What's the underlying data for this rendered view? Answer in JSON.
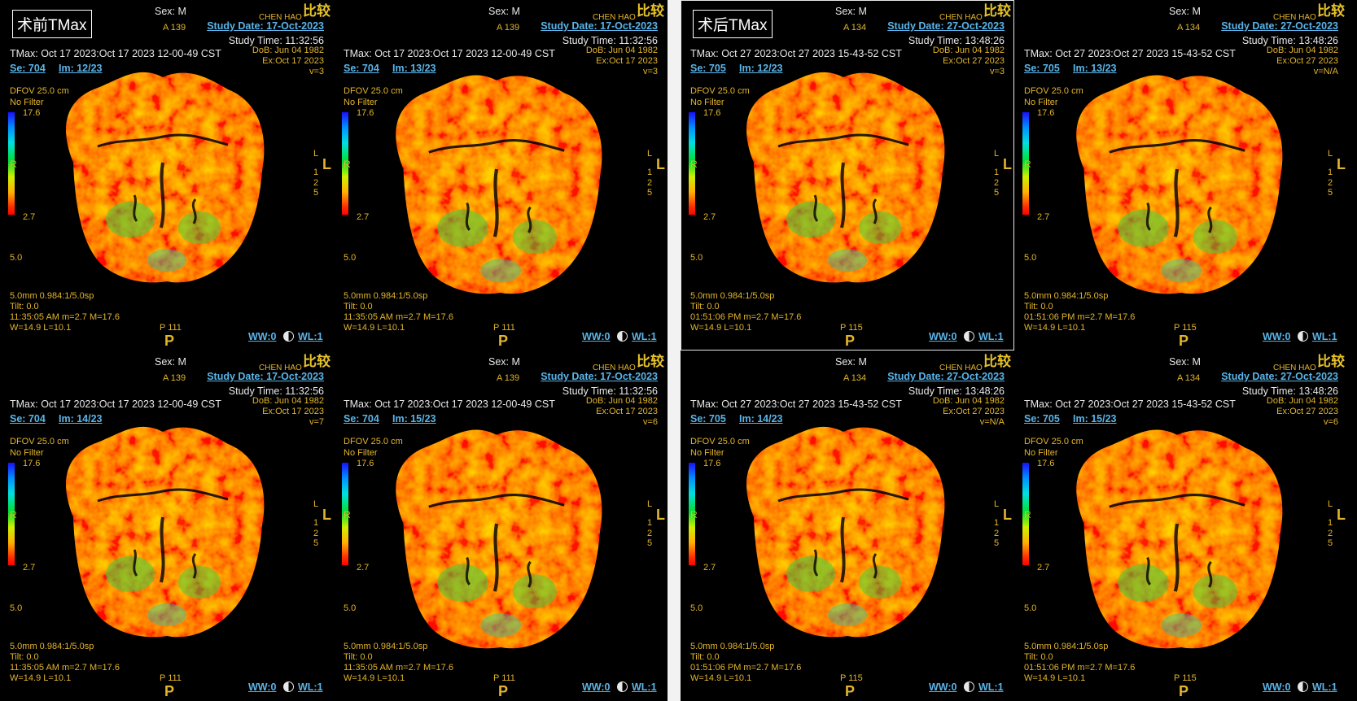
{
  "left": {
    "tag": "术前TMax",
    "panels": [
      {
        "sex": "Sex: M",
        "name": "CHEN HAO",
        "compare": "比较",
        "a": "A 139",
        "study_date": "Study Date: 17-Oct-2023",
        "study_time": "Study Time: 11:32:56",
        "tmax": "TMax: Oct 17 2023:Oct 17 2023 12-00-49 CST",
        "dob": "DoB: Jun 04 1982",
        "ex": "Ex:Oct 17 2023",
        "v": "v=3",
        "se": "Se: 704",
        "im": "Im: 12/23",
        "dfov": "DFOV 25.0 cm",
        "filter": "No Filter",
        "scale_top": "17.6",
        "r": "R",
        "scale_bot": "2.7",
        "five": "5.0",
        "l_small": "L",
        "l_big": "L",
        "lnums": "1\n2\n5",
        "thick": "5.0mm 0.984:1/5.0sp",
        "tilt": "Tilt: 0.0",
        "time": "11:35:05 AM m=2.7 M=17.6",
        "wl": "W=14.9 L=10.1",
        "p_pos": "P 111",
        "p": "P",
        "ww": "WW:0",
        "wlbtn": "WL:1"
      },
      {
        "sex": "Sex: M",
        "name": "CHEN HAO",
        "compare": "比较",
        "a": "A 139",
        "study_date": "Study Date: 17-Oct-2023",
        "study_time": "Study Time: 11:32:56",
        "tmax": "TMax: Oct 17 2023:Oct 17 2023 12-00-49 CST",
        "dob": "DoB: Jun 04 1982",
        "ex": "Ex:Oct 17 2023",
        "v": "v=3",
        "se": "Se: 704",
        "im": "Im: 13/23",
        "dfov": "DFOV 25.0 cm",
        "filter": "No Filter",
        "scale_top": "17.6",
        "r": "R",
        "scale_bot": "2.7",
        "five": "5.0",
        "l_small": "L",
        "l_big": "L",
        "lnums": "1\n2\n5",
        "thick": "5.0mm 0.984:1/5.0sp",
        "tilt": "Tilt: 0.0",
        "time": "11:35:05 AM m=2.7 M=17.6",
        "wl": "W=14.9 L=10.1",
        "p_pos": "P 111",
        "p": "P",
        "ww": "WW:0",
        "wlbtn": "WL:1"
      },
      {
        "sex": "Sex: M",
        "name": "CHEN HAO",
        "compare": "比较",
        "a": "A 139",
        "study_date": "Study Date: 17-Oct-2023",
        "study_time": "Study Time: 11:32:56",
        "tmax": "TMax: Oct 17 2023:Oct 17 2023 12-00-49 CST",
        "dob": "DoB: Jun 04 1982",
        "ex": "Ex:Oct 17 2023",
        "v": "v=7",
        "se": "Se: 704",
        "im": "Im: 14/23",
        "dfov": "DFOV 25.0 cm",
        "filter": "No Filter",
        "scale_top": "17.6",
        "r": "R",
        "scale_bot": "2.7",
        "five": "5.0",
        "l_small": "L",
        "l_big": "L",
        "lnums": "1\n2\n5",
        "thick": "5.0mm 0.984:1/5.0sp",
        "tilt": "Tilt: 0.0",
        "time": "11:35:05 AM m=2.7 M=17.6",
        "wl": "W=14.9 L=10.1",
        "p_pos": "P 111",
        "p": "P",
        "ww": "WW:0",
        "wlbtn": "WL:1"
      },
      {
        "sex": "Sex: M",
        "name": "CHEN HAO",
        "compare": "比较",
        "a": "A 139",
        "study_date": "Study Date: 17-Oct-2023",
        "study_time": "Study Time: 11:32:56",
        "tmax": "TMax: Oct 17 2023:Oct 17 2023 12-00-49 CST",
        "dob": "DoB: Jun 04 1982",
        "ex": "Ex:Oct 17 2023",
        "v": "v=6",
        "se": "Se: 704",
        "im": "Im: 15/23",
        "dfov": "DFOV 25.0 cm",
        "filter": "No Filter",
        "scale_top": "17.6",
        "r": "R",
        "scale_bot": "2.7",
        "five": "5.0",
        "l_small": "L",
        "l_big": "L",
        "lnums": "1\n2\n5",
        "thick": "5.0mm 0.984:1/5.0sp",
        "tilt": "Tilt: 0.0",
        "time": "11:35:05 AM m=2.7 M=17.6",
        "wl": "W=14.9 L=10.1",
        "p_pos": "P 111",
        "p": "P",
        "ww": "WW:0",
        "wlbtn": "WL:1"
      }
    ]
  },
  "right": {
    "tag": "术后TMax",
    "panels": [
      {
        "sex": "Sex: M",
        "name": "CHEN HAO",
        "compare": "比较",
        "a": "A 134",
        "study_date": "Study Date: 27-Oct-2023",
        "study_time": "Study Time: 13:48:26",
        "tmax": "TMax: Oct 27 2023:Oct 27 2023 15-43-52 CST",
        "dob": "DoB: Jun 04 1982",
        "ex": "Ex:Oct 27 2023",
        "v": "v=3",
        "se": "Se: 705",
        "im": "Im: 12/23",
        "dfov": "DFOV 25.0 cm",
        "filter": "No Filter",
        "scale_top": "17.6",
        "r": "R",
        "scale_bot": "2.7",
        "five": "5.0",
        "l_small": "L",
        "l_big": "L",
        "lnums": "1\n2\n5",
        "thick": "5.0mm 0.984:1/5.0sp",
        "tilt": "Tilt: 0.0",
        "time": "01:51:06 PM m=2.7 M=17.6",
        "wl": "W=14.9 L=10.1",
        "p_pos": "P 115",
        "p": "P",
        "ww": "WW:0",
        "wlbtn": "WL:1"
      },
      {
        "sex": "Sex: M",
        "name": "CHEN HAO",
        "compare": "比较",
        "a": "A 134",
        "study_date": "Study Date: 27-Oct-2023",
        "study_time": "Study Time: 13:48:26",
        "tmax": "TMax: Oct 27 2023:Oct 27 2023 15-43-52 CST",
        "dob": "DoB: Jun 04 1982",
        "ex": "Ex:Oct 27 2023",
        "v": "v=N/A",
        "se": "Se: 705",
        "im": "Im: 13/23",
        "dfov": "DFOV 25.0 cm",
        "filter": "No Filter",
        "scale_top": "17.6",
        "r": "R",
        "scale_bot": "2.7",
        "five": "5.0",
        "l_small": "L",
        "l_big": "L",
        "lnums": "1\n2\n5",
        "thick": "5.0mm 0.984:1/5.0sp",
        "tilt": "Tilt: 0.0",
        "time": "01:51:06 PM m=2.7 M=17.6",
        "wl": "W=14.9 L=10.1",
        "p_pos": "P 115",
        "p": "P",
        "ww": "WW:0",
        "wlbtn": "WL:1"
      },
      {
        "sex": "Sex: M",
        "name": "CHEN HAO",
        "compare": "比较",
        "a": "A 134",
        "study_date": "Study Date: 27-Oct-2023",
        "study_time": "Study Time: 13:48:26",
        "tmax": "TMax: Oct 27 2023:Oct 27 2023 15-43-52 CST",
        "dob": "DoB: Jun 04 1982",
        "ex": "Ex:Oct 27 2023",
        "v": "v=N/A",
        "se": "Se: 705",
        "im": "Im: 14/23",
        "dfov": "DFOV 25.0 cm",
        "filter": "No Filter",
        "scale_top": "17.6",
        "r": "R",
        "scale_bot": "2.7",
        "five": "5.0",
        "l_small": "L",
        "l_big": "L",
        "lnums": "1\n2\n5",
        "thick": "5.0mm 0.984:1/5.0sp",
        "tilt": "Tilt: 0.0",
        "time": "01:51:06 PM m=2.7 M=17.6",
        "wl": "W=14.9 L=10.1",
        "p_pos": "P 115",
        "p": "P",
        "ww": "WW:0",
        "wlbtn": "WL:1"
      },
      {
        "sex": "Sex: M",
        "name": "CHEN HAO",
        "compare": "比较",
        "a": "A 134",
        "study_date": "Study Date: 27-Oct-2023",
        "study_time": "Study Time: 13:48:26",
        "tmax": "TMax: Oct 27 2023:Oct 27 2023 15-43-52 CST",
        "dob": "DoB: Jun 04 1982",
        "ex": "Ex:Oct 27 2023",
        "v": "v=6",
        "se": "Se: 705",
        "im": "Im: 15/23",
        "dfov": "DFOV 25.0 cm",
        "filter": "No Filter",
        "scale_top": "17.6",
        "r": "R",
        "scale_bot": "2.7",
        "five": "5.0",
        "l_small": "L",
        "l_big": "L",
        "lnums": "1\n2\n5",
        "thick": "5.0mm 0.984:1/5.0sp",
        "tilt": "Tilt: 0.0",
        "time": "01:51:06 PM m=2.7 M=17.6",
        "wl": "W=14.9 L=10.1",
        "p_pos": "P 115",
        "p": "P",
        "ww": "WW:0",
        "wlbtn": "WL:1"
      }
    ]
  },
  "colors": {
    "overlay_yellow": "#e3b52c",
    "link_blue": "#5ab4e8",
    "divider": "#f2f2f2"
  }
}
